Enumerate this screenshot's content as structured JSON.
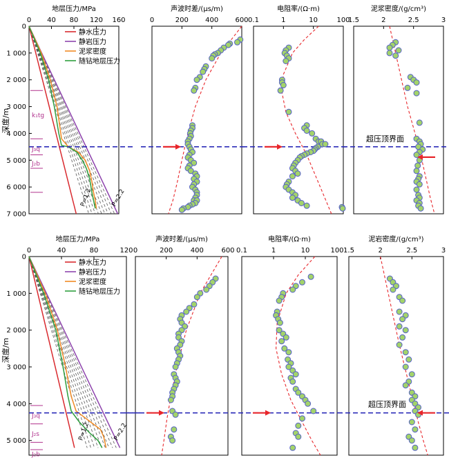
{
  "figure": {
    "depth_axis_label": "深度/m",
    "overpressure_label": "超压顶界面",
    "accent_colors": {
      "hydrostatic": "#d9292e",
      "lithostatic": "#8e44ad",
      "mud": "#f08a24",
      "drilling": "#2e9e3e",
      "trend": "#e8262b",
      "overpressure_line": "#2b2bb8",
      "point_fill": "#a3d36a",
      "point_stroke": "#5560c8",
      "formation": "#b0308c"
    }
  },
  "chart_data": [
    {
      "type": "line",
      "panel": "top",
      "title": "地层压力/MPa",
      "xlim": [
        0,
        160
      ],
      "xticks": [
        0,
        40,
        80,
        120,
        160
      ],
      "ylim": [
        0,
        7000
      ],
      "yticks": [
        0,
        1000,
        2000,
        3000,
        4000,
        5000,
        6000,
        7000
      ],
      "ytick_labels": [
        "0",
        "1 000",
        "2 000",
        "3 000",
        "4 000",
        "5 000",
        "6 000",
        "7 000"
      ],
      "legend": [
        "静水压力",
        "静岩压力",
        "泥浆密度",
        "随钻地层压力"
      ],
      "series": [
        {
          "name": "静水压力",
          "x": [
            0,
            84
          ],
          "y": [
            0,
            7000
          ]
        },
        {
          "name": "静岩压力",
          "x": [
            0,
            158
          ],
          "y": [
            0,
            7000
          ]
        },
        {
          "name": "泥浆密度",
          "x": [
            0,
            22,
            38,
            50,
            58,
            70,
            88,
            100,
            108,
            112,
            115,
            118,
            120
          ],
          "y": [
            0,
            1000,
            2000,
            3000,
            4200,
            4500,
            4700,
            5000,
            5400,
            5800,
            6200,
            6500,
            6800
          ]
        },
        {
          "name": "随钻地层压力",
          "x": [
            0,
            20,
            35,
            45,
            53,
            58,
            70,
            85,
            95,
            102,
            108,
            112,
            118
          ],
          "y": [
            0,
            1000,
            2000,
            3000,
            4000,
            4450,
            4500,
            4700,
            5000,
            5300,
            5700,
            6200,
            6800
          ]
        }
      ],
      "coefficients": [
        1.2,
        1.3,
        1.4,
        1.5,
        1.6,
        1.7,
        1.8,
        1.9,
        2.0,
        2.1,
        2.2
      ],
      "coef_labels": [
        "P=1.2",
        "P=2.2"
      ],
      "formations": [
        {
          "label": "k₁tg",
          "depth": 3300
        },
        {
          "label": "J₃q",
          "depth": 4550
        },
        {
          "label": "J₂b",
          "depth": 5100
        }
      ],
      "formation_ticks": [
        2400,
        4200,
        4800,
        5300,
        6200
      ],
      "overpressure_top": 4500
    },
    {
      "type": "scatter",
      "panel": "top",
      "title": "声波时差/(μs/m)",
      "xlim": [
        0,
        600
      ],
      "xticks": [
        0,
        200,
        400,
        600
      ],
      "ylim": [
        0,
        7000
      ],
      "overpressure_top": 4500,
      "arrow_side": "left",
      "points": {
        "x": [
          590,
          570,
          520,
          510,
          480,
          460,
          440,
          420,
          410,
          400,
          360,
          350,
          340,
          320,
          300,
          290,
          280,
          270,
          270,
          260,
          255,
          260,
          250,
          240,
          240,
          250,
          260,
          270,
          250,
          240,
          260,
          280,
          250,
          240,
          260,
          290,
          300,
          280,
          300,
          280,
          270,
          290,
          300,
          300,
          290,
          280,
          300,
          290,
          270,
          250,
          240,
          210,
          200
        ],
        "y": [
          500,
          600,
          650,
          700,
          800,
          900,
          1000,
          1050,
          1100,
          1200,
          1500,
          1600,
          1700,
          1900,
          2000,
          2300,
          2400,
          3700,
          3800,
          3900,
          4000,
          4100,
          4200,
          4300,
          4400,
          4500,
          4600,
          4700,
          4800,
          4900,
          5000,
          5100,
          5200,
          5300,
          5400,
          5500,
          5600,
          5700,
          5800,
          5900,
          6000,
          6100,
          6200,
          6300,
          6400,
          6500,
          6500,
          6600,
          6650,
          6700,
          6750,
          6800,
          6850
        ]
      },
      "trend": {
        "x": [
          600,
          460,
          360,
          290,
          240,
          200,
          170,
          140,
          110
        ],
        "y": [
          0,
          1000,
          2000,
          3000,
          4000,
          5000,
          5800,
          6500,
          7000
        ]
      }
    },
    {
      "type": "scatter",
      "panel": "top",
      "title": "电阻率/(Ω·m)",
      "xscale": "log",
      "xlim": [
        0.1,
        100
      ],
      "xticks": [
        0.1,
        1,
        10,
        100
      ],
      "ylim": [
        0,
        7000
      ],
      "overpressure_top": 4500,
      "arrow_side": "left",
      "points": {
        "x": [
          1.5,
          1.2,
          1.1,
          1.3,
          1.5,
          1.2,
          0.9,
          0.9,
          1.0,
          0.8,
          1.5,
          6,
          5,
          6,
          9,
          12,
          15,
          18,
          20,
          25,
          14,
          12,
          11,
          10,
          8,
          6,
          5,
          4,
          3.5,
          3,
          2.5,
          2.2,
          2,
          2.5,
          3,
          2,
          1.5,
          1.3,
          1.2,
          1.5,
          2,
          2.5,
          2,
          3,
          4,
          6,
          90,
          95
        ],
        "y": [
          800,
          900,
          1000,
          1100,
          1200,
          1300,
          2000,
          2100,
          2200,
          2400,
          3200,
          3700,
          3800,
          3900,
          4000,
          4200,
          4300,
          4300,
          4400,
          4400,
          4500,
          4550,
          4600,
          4650,
          4700,
          4750,
          4800,
          4850,
          4900,
          5000,
          5100,
          5200,
          5300,
          5400,
          5500,
          5600,
          5800,
          5900,
          6000,
          6100,
          6200,
          6300,
          6400,
          6500,
          6600,
          6700,
          6750,
          6800
        ]
      },
      "trend": {
        "x": [
          15,
          5,
          2,
          1,
          0.9,
          1.2,
          2.5,
          6,
          12,
          22,
          40
        ],
        "y": [
          0,
          500,
          1000,
          1800,
          2500,
          3200,
          4000,
          4800,
          5600,
          6300,
          7000
        ]
      }
    },
    {
      "type": "scatter",
      "panel": "top",
      "title": "泥浆密度/(g/cm³)",
      "xlim": [
        1.5,
        3.0
      ],
      "xticks": [
        1.5,
        2.0,
        2.5,
        3.0
      ],
      "ylim": [
        0,
        7000
      ],
      "overpressure_top": 4500,
      "arrow_side": "right",
      "points": {
        "x": [
          2.2,
          2.15,
          2.1,
          2.25,
          2.1,
          2.2,
          2.45,
          2.5,
          2.55,
          2.4,
          2.55,
          2.6,
          2.55,
          2.6,
          2.62,
          2.58,
          2.65,
          2.6,
          2.55,
          2.6,
          2.57,
          2.55,
          2.6,
          2.58,
          2.55,
          2.6,
          2.55,
          2.58,
          2.6,
          2.55,
          2.6,
          2.58,
          2.62
        ],
        "y": [
          600,
          700,
          800,
          900,
          1000,
          1100,
          1900,
          2000,
          2100,
          2300,
          2500,
          3600,
          4200,
          4300,
          4400,
          4500,
          4600,
          4700,
          4800,
          5000,
          5200,
          5400,
          5600,
          5700,
          5800,
          5900,
          6100,
          6300,
          6400,
          6500,
          6600,
          6700,
          6800
        ]
      },
      "trend": {
        "x": [
          2.1,
          2.2,
          2.3,
          2.4,
          2.5,
          2.6,
          2.7,
          2.78,
          2.85
        ],
        "y": [
          0,
          1000,
          2000,
          3000,
          3800,
          4600,
          5600,
          6400,
          7000
        ]
      }
    },
    {
      "type": "line",
      "panel": "bottom",
      "title": "地层压力/MPa",
      "xlim": [
        0,
        120
      ],
      "xticks": [
        0,
        40,
        80,
        120
      ],
      "ylim": [
        0,
        5400
      ],
      "yticks": [
        0,
        1000,
        2000,
        3000,
        4000,
        5000
      ],
      "ytick_labels": [
        "0",
        "1 000",
        "2 000",
        "3 000",
        "4 000",
        "5 000"
      ],
      "legend": [
        "静水压力",
        "静岩压力",
        "泥浆密度",
        "随钻地层压力"
      ],
      "series": [
        {
          "name": "静水压力",
          "x": [
            0,
            56
          ],
          "y": [
            0,
            5200
          ]
        },
        {
          "name": "静岩压力",
          "x": [
            0,
            112
          ],
          "y": [
            0,
            5200
          ]
        },
        {
          "name": "泥浆密度",
          "x": [
            0,
            20,
            35,
            45,
            52,
            58,
            70,
            88,
            92,
            95
          ],
          "y": [
            0,
            1000,
            2000,
            3000,
            3800,
            4200,
            4400,
            4700,
            4900,
            5200
          ]
        },
        {
          "name": "随钻地层压力",
          "x": [
            0,
            18,
            33,
            42,
            48,
            52,
            62,
            75,
            85,
            90
          ],
          "y": [
            0,
            1000,
            2000,
            3000,
            3800,
            4200,
            4500,
            4800,
            5000,
            5200
          ]
        }
      ],
      "coefficients": [
        1.2,
        1.3,
        1.4,
        1.5,
        1.6,
        1.7,
        1.8,
        1.9,
        2.0,
        2.1,
        2.2
      ],
      "coef_labels": [
        "P=1.2",
        "P=2.2"
      ],
      "formations": [
        {
          "label": "J₃q",
          "depth": 4300
        },
        {
          "label": "J₂s",
          "depth": 4800
        },
        {
          "label": "J₂b",
          "depth": 5350
        }
      ],
      "formation_ticks": [
        4050,
        4550,
        5050,
        5250
      ],
      "overpressure_top": 4250
    },
    {
      "type": "scatter",
      "panel": "bottom",
      "title": "声波时差/(μs/m)",
      "xlim": [
        0,
        600
      ],
      "xticks": [
        0,
        200,
        400,
        600
      ],
      "ylim": [
        0,
        5400
      ],
      "overpressure_top": 4250,
      "arrow_side": "left",
      "points": {
        "x": [
          520,
          500,
          480,
          460,
          420,
          400,
          380,
          350,
          330,
          300,
          290,
          300,
          320,
          300,
          280,
          280,
          300,
          290,
          270,
          280,
          290,
          280,
          270,
          260,
          250,
          260,
          270,
          260,
          250,
          240,
          240,
          230,
          240,
          260,
          250,
          230,
          240
        ],
        "y": [
          600,
          700,
          800,
          900,
          1000,
          1100,
          1300,
          1400,
          1500,
          1600,
          1700,
          1800,
          1900,
          2000,
          2100,
          2200,
          2300,
          2400,
          2500,
          2600,
          2700,
          2800,
          2900,
          3000,
          3200,
          3300,
          3400,
          3500,
          3600,
          3700,
          3800,
          3900,
          4200,
          4300,
          4700,
          4900,
          5000
        ]
      },
      "trend": {
        "x": [
          560,
          420,
          330,
          270,
          230,
          205,
          185,
          170
        ],
        "y": [
          0,
          1000,
          2000,
          3000,
          3800,
          4400,
          5000,
          5400
        ]
      }
    },
    {
      "type": "scatter",
      "panel": "bottom",
      "title": "电阻率/(Ω·m)",
      "xscale": "log",
      "xlim": [
        0.1,
        100
      ],
      "xticks": [
        0.1,
        1,
        10,
        100
      ],
      "ylim": [
        0,
        5400
      ],
      "overpressure_top": 4250,
      "arrow_side": "left",
      "points": {
        "x": [
          15,
          8,
          5,
          4,
          2,
          1.8,
          1.5,
          1.3,
          1.2,
          1.4,
          1.6,
          1.5,
          2,
          2.5,
          1.8,
          2.2,
          3,
          2.8,
          3.5,
          3,
          4,
          5,
          3.5,
          4,
          5,
          6,
          8,
          10,
          12,
          18,
          8,
          6,
          5,
          6,
          4
        ],
        "y": [
          550,
          700,
          800,
          900,
          1000,
          1100,
          1200,
          1500,
          1600,
          1700,
          1800,
          2000,
          2100,
          2200,
          2300,
          2500,
          2600,
          2800,
          2900,
          3000,
          3100,
          3200,
          3300,
          3400,
          3600,
          3700,
          3800,
          3900,
          4000,
          4200,
          4400,
          4600,
          4800,
          4900,
          5200
        ]
      },
      "trend": {
        "x": [
          20,
          6,
          2.5,
          1.3,
          1.2,
          1.8,
          3.5,
          8,
          16,
          30
        ],
        "y": [
          0,
          500,
          1000,
          1800,
          2500,
          3200,
          3900,
          4500,
          5000,
          5400
        ]
      }
    },
    {
      "type": "scatter",
      "panel": "bottom",
      "title": "泥岩密度/(g/cm³)",
      "xlim": [
        1.5,
        3.0
      ],
      "xticks": [
        1.5,
        2.0,
        2.5,
        3.0
      ],
      "ylim": [
        0,
        5400
      ],
      "overpressure_top": 4250,
      "arrow_side": "right",
      "points": {
        "x": [
          2.15,
          2.2,
          2.25,
          2.2,
          2.3,
          2.35,
          2.3,
          2.4,
          2.35,
          2.3,
          2.4,
          2.35,
          2.3,
          2.4,
          2.45,
          2.4,
          2.5,
          2.45,
          2.4,
          2.5,
          2.55,
          2.5,
          2.55,
          2.6,
          2.55,
          2.6,
          2.5,
          2.55,
          2.45,
          2.5,
          2.55
        ],
        "y": [
          600,
          700,
          800,
          900,
          1100,
          1200,
          1500,
          1600,
          1700,
          1900,
          2000,
          2200,
          2400,
          2600,
          2800,
          3000,
          3200,
          3400,
          3500,
          3700,
          3800,
          3900,
          4000,
          4100,
          4200,
          4300,
          4500,
          4700,
          4900,
          5000,
          5200
        ]
      },
      "trend": {
        "x": [
          2.0,
          2.1,
          2.2,
          2.3,
          2.4,
          2.5,
          2.6,
          2.68,
          2.75
        ],
        "y": [
          0,
          800,
          1600,
          2400,
          3100,
          3800,
          4500,
          5000,
          5400
        ]
      }
    }
  ]
}
